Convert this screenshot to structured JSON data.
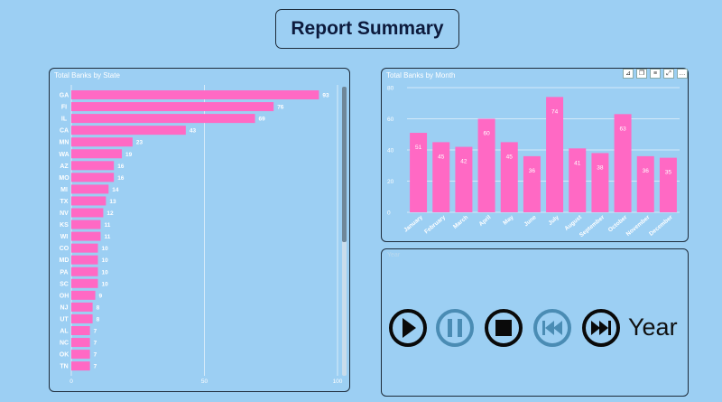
{
  "report": {
    "title": "Report Summary"
  },
  "state_chart": {
    "title": "Total Banks by State"
  },
  "month_chart": {
    "title": "Total Banks by Month"
  },
  "play_panel": {
    "label": "Year",
    "year_label": "Year",
    "buttons": [
      "play-icon",
      "pause-icon",
      "stop-icon",
      "skip-back-icon",
      "skip-forward-icon"
    ]
  },
  "colors": {
    "background": "#9ccff3",
    "bar": "#ff69c4",
    "border": "#1d2b3a",
    "disabled_button": "#4a8cb4"
  },
  "chart_data": [
    {
      "type": "bar",
      "orientation": "horizontal",
      "title": "Total Banks by State",
      "categories": [
        "GA",
        "FI",
        "IL",
        "CA",
        "MN",
        "WA",
        "AZ",
        "MO",
        "MI",
        "TX",
        "NV",
        "KS",
        "WI",
        "CO",
        "MD",
        "PA",
        "SC",
        "OH",
        "NJ",
        "UT",
        "AL",
        "NC",
        "OK",
        "TN"
      ],
      "values": [
        93,
        76,
        69,
        43,
        23,
        19,
        16,
        16,
        14,
        13,
        12,
        11,
        11,
        10,
        10,
        10,
        10,
        9,
        8,
        8,
        7,
        7,
        7,
        7
      ],
      "xlim": [
        0,
        100
      ],
      "xticks": [
        0,
        50,
        100
      ],
      "grid": true
    },
    {
      "type": "bar",
      "title": "Total Banks by Month",
      "categories": [
        "January",
        "February",
        "March",
        "April",
        "May",
        "June",
        "July",
        "August",
        "September",
        "October",
        "November",
        "December"
      ],
      "values": [
        51,
        45,
        42,
        60,
        45,
        36,
        74,
        41,
        38,
        63,
        36,
        35
      ],
      "ylim": [
        0,
        80
      ],
      "yticks": [
        0,
        20,
        40,
        60,
        80
      ],
      "grid": true
    }
  ]
}
